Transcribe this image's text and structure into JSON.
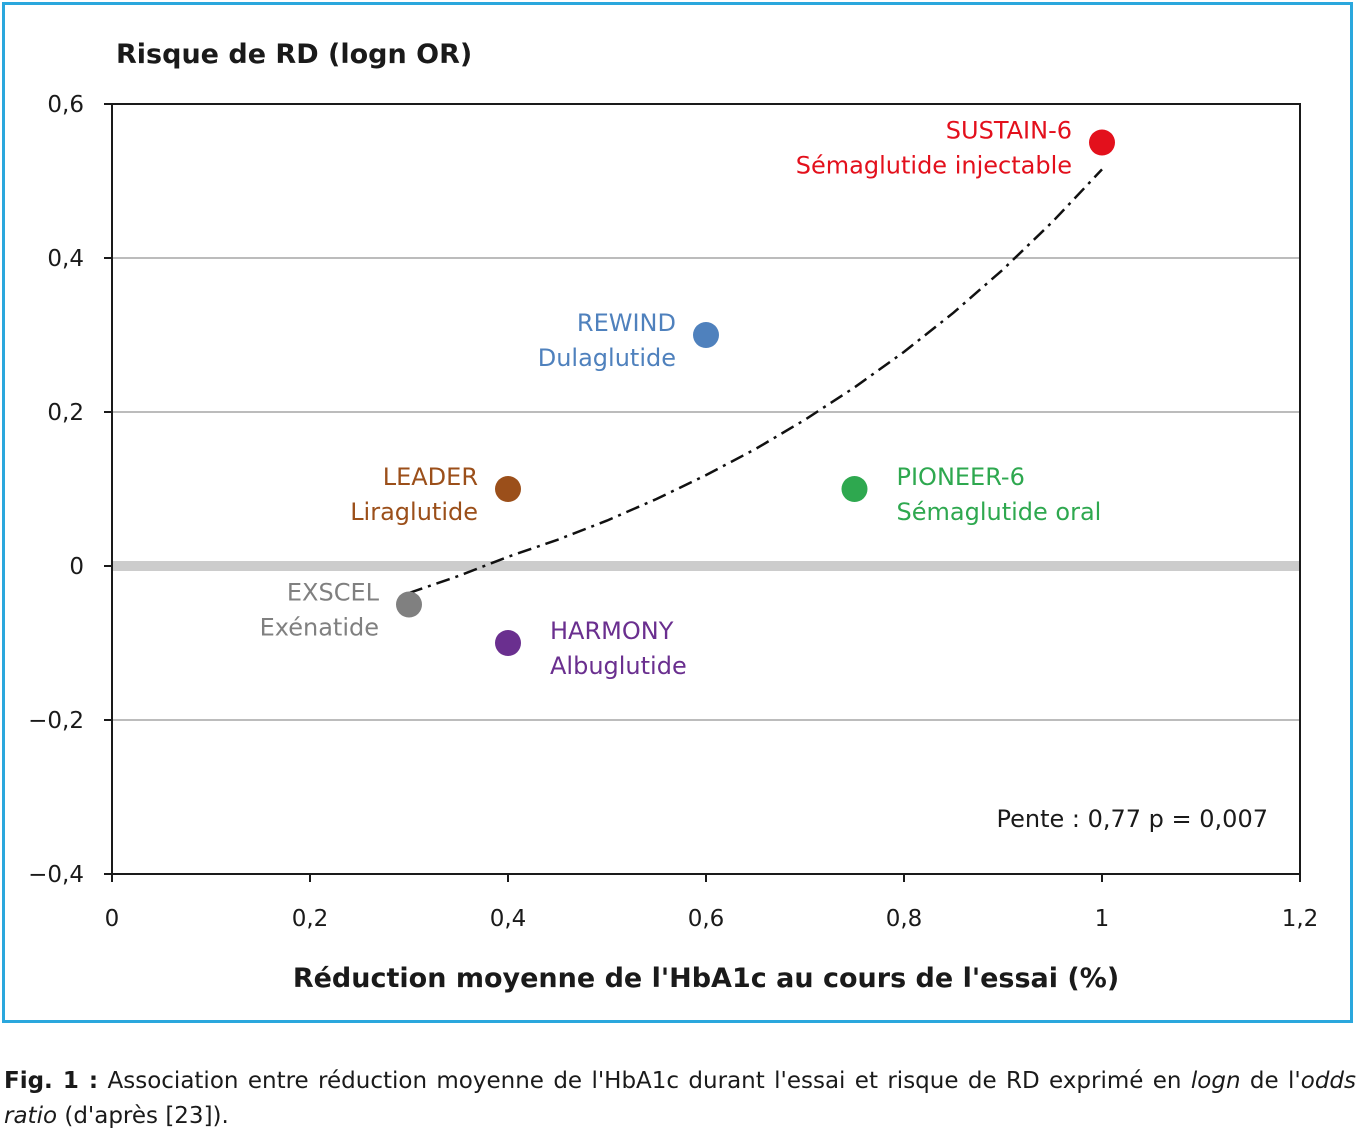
{
  "chart_data": {
    "type": "scatter",
    "ylabel": "Risque de RD (logn OR)",
    "xlabel": "Réduction moyenne de l'HbA1c au cours de l'essai (%)",
    "xlim": [
      0,
      1.2
    ],
    "ylim": [
      -0.4,
      0.6
    ],
    "x_ticks": [
      0,
      0.2,
      0.4,
      0.6,
      0.8,
      1.0,
      1.2
    ],
    "x_tick_labels": [
      "0",
      "0,2",
      "0,4",
      "0,6",
      "0,8",
      "1",
      "1,2"
    ],
    "y_ticks": [
      0.6,
      0.4,
      0.2,
      0,
      -0.2,
      -0.4
    ],
    "y_tick_labels": [
      "0,6",
      "0,4",
      "0,2",
      "0",
      "−0,2",
      "−0,4"
    ],
    "grid": "horizontal",
    "zero_line": true,
    "points": [
      {
        "trial": "SUSTAIN-6",
        "drug": "Sémaglutide injectable",
        "x": 1.0,
        "y": 0.55,
        "color": "#e3101c",
        "label_side": "left"
      },
      {
        "trial": "REWIND",
        "drug": "Dulaglutide",
        "x": 0.6,
        "y": 0.3,
        "color": "#4f81bd",
        "label_side": "left"
      },
      {
        "trial": "LEADER",
        "drug": "Liraglutide",
        "x": 0.4,
        "y": 0.1,
        "color": "#9b4f1a",
        "label_side": "left"
      },
      {
        "trial": "PIONEER-6",
        "drug": "Sémaglutide oral",
        "x": 0.75,
        "y": 0.1,
        "color": "#2ea84f",
        "label_side": "right"
      },
      {
        "trial": "EXSCEL",
        "drug": "Exénatide",
        "x": 0.3,
        "y": -0.05,
        "color": "#808080",
        "label_side": "left"
      },
      {
        "trial": "HARMONY",
        "drug": "Albuglutide",
        "x": 0.4,
        "y": -0.1,
        "color": "#6a2f8f",
        "label_side": "right"
      }
    ],
    "trend_line": {
      "style": "dash-dot",
      "x": [
        0.3,
        0.35,
        0.4,
        0.45,
        0.5,
        0.55,
        0.6,
        0.65,
        0.7,
        0.75,
        0.8,
        0.85,
        0.9,
        0.95,
        1.0
      ],
      "y": [
        -0.035,
        -0.013,
        0.012,
        0.034,
        0.059,
        0.087,
        0.118,
        0.152,
        0.19,
        0.232,
        0.278,
        0.329,
        0.385,
        0.447,
        0.515
      ]
    },
    "annotation": "Pente : 0,77 p = 0,007"
  },
  "caption": {
    "label": "Fig. 1 :",
    "text_1": " Association entre réduction moyenne de l'HbA1c durant l'essai et risque de RD exprimé en ",
    "italic_1": "logn",
    "text_2": " de l'",
    "italic_2": "odds ratio",
    "text_3": " (d'après [23])."
  },
  "colors": {
    "frame": "#2aa7dd",
    "zero_line": "#cccccc",
    "grid": "#a6a6a6"
  }
}
